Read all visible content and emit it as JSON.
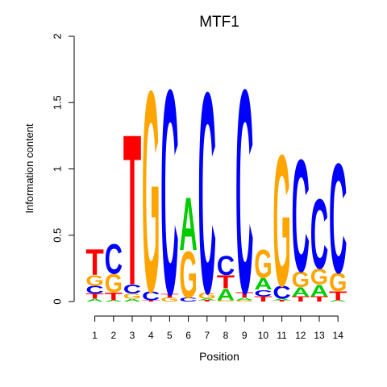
{
  "chart_data": {
    "type": "sequence-logo",
    "title": "MTF1",
    "xlabel": "Position",
    "ylabel": "Information content",
    "ylim": [
      0,
      2
    ],
    "y_ticks": [
      0,
      0.5,
      1,
      1.5,
      2
    ],
    "y_tick_labels": [
      "0",
      "0.5",
      "1",
      "1.5",
      "2"
    ],
    "colors": {
      "A": "#00cc00",
      "C": "#0000ff",
      "G": "#ffa500",
      "T": "#ff0000"
    },
    "positions": [
      {
        "label": "1",
        "stack": [
          [
            "A",
            0.02
          ],
          [
            "T",
            0.04
          ],
          [
            "C",
            0.06
          ],
          [
            "G",
            0.08
          ],
          [
            "T",
            0.2
          ]
        ]
      },
      {
        "label": "2",
        "stack": [
          [
            "A",
            0.01
          ],
          [
            "T",
            0.06
          ],
          [
            "G",
            0.14
          ],
          [
            "C",
            0.23
          ]
        ]
      },
      {
        "label": "3",
        "stack": [
          [
            "A",
            0.02
          ],
          [
            "G",
            0.04
          ],
          [
            "C",
            0.07
          ],
          [
            "T",
            1.17
          ]
        ]
      },
      {
        "label": "4",
        "stack": [
          [
            "T",
            0.01
          ],
          [
            "C",
            0.07
          ],
          [
            "G",
            1.56
          ]
        ]
      },
      {
        "label": "5",
        "stack": [
          [
            "G",
            0.03
          ],
          [
            "T",
            0.03
          ],
          [
            "C",
            1.59
          ]
        ]
      },
      {
        "label": "6",
        "stack": [
          [
            "C",
            0.03
          ],
          [
            "G",
            0.36
          ],
          [
            "A",
            0.41
          ]
        ]
      },
      {
        "label": "7",
        "stack": [
          [
            "T",
            0.01
          ],
          [
            "A",
            0.01
          ],
          [
            "G",
            0.05
          ],
          [
            "C",
            1.56
          ]
        ]
      },
      {
        "label": "8",
        "stack": [
          [
            "G",
            0.01
          ],
          [
            "A",
            0.09
          ],
          [
            "T",
            0.1
          ],
          [
            "C",
            0.15
          ]
        ]
      },
      {
        "label": "9",
        "stack": [
          [
            "G",
            0.01
          ],
          [
            "A",
            0.02
          ],
          [
            "T",
            0.04
          ],
          [
            "C",
            1.58
          ]
        ]
      },
      {
        "label": "10",
        "stack": [
          [
            "T",
            0.04
          ],
          [
            "C",
            0.05
          ],
          [
            "A",
            0.09
          ],
          [
            "G",
            0.22
          ]
        ]
      },
      {
        "label": "11",
        "stack": [
          [
            "T",
            0.01
          ],
          [
            "A",
            0.01
          ],
          [
            "C",
            0.1
          ],
          [
            "G",
            1.02
          ]
        ]
      },
      {
        "label": "12",
        "stack": [
          [
            "T",
            0.04
          ],
          [
            "A",
            0.07
          ],
          [
            "G",
            0.12
          ],
          [
            "C",
            0.87
          ]
        ]
      },
      {
        "label": "13",
        "stack": [
          [
            "T",
            0.04
          ],
          [
            "A",
            0.09
          ],
          [
            "G",
            0.12
          ],
          [
            "C",
            0.54
          ]
        ]
      },
      {
        "label": "14",
        "stack": [
          [
            "A",
            0.01
          ],
          [
            "T",
            0.07
          ],
          [
            "G",
            0.14
          ],
          [
            "C",
            0.85
          ]
        ]
      }
    ]
  }
}
